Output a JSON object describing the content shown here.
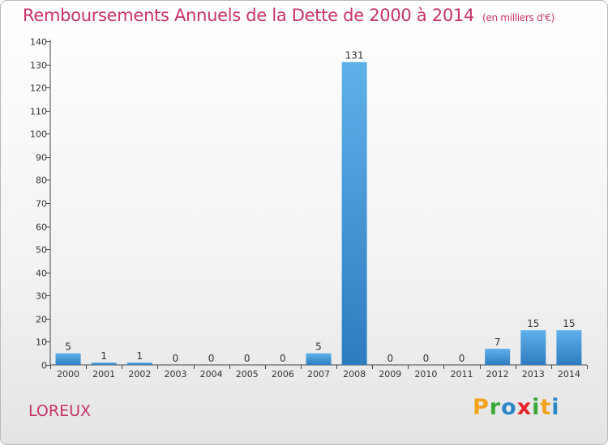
{
  "chart_data": {
    "type": "bar",
    "title": "Remboursements Annuels de la Dette de 2000 à 2014",
    "unit_label": "(en milliers d'€)",
    "categories": [
      "2000",
      "2001",
      "2002",
      "2003",
      "2004",
      "2005",
      "2006",
      "2007",
      "2008",
      "2009",
      "2010",
      "2011",
      "2012",
      "2013",
      "2014"
    ],
    "values": [
      5,
      1,
      1,
      0,
      0,
      0,
      0,
      5,
      131,
      0,
      0,
      0,
      7,
      15,
      15
    ],
    "ylim": [
      0,
      140
    ],
    "yticks": [
      0,
      10,
      20,
      30,
      40,
      50,
      60,
      70,
      80,
      90,
      100,
      110,
      120,
      130,
      140
    ],
    "xlabel": "",
    "ylabel": "",
    "grid": false
  },
  "commune": "LOREUX",
  "logo": {
    "letters": [
      "P",
      "r",
      "o",
      "x",
      "i",
      "t",
      "i"
    ],
    "colors": [
      "#f2a21b",
      "#39a935",
      "#2b86c9",
      "#e3262b",
      "#39a935",
      "#f2a21b",
      "#2b86c9"
    ],
    "label": "Proxiti"
  },
  "colors": {
    "title": "#c8326b",
    "bar_top": "#5fb1ea",
    "bar_bottom": "#2e7cc0",
    "axis": "#444444"
  }
}
